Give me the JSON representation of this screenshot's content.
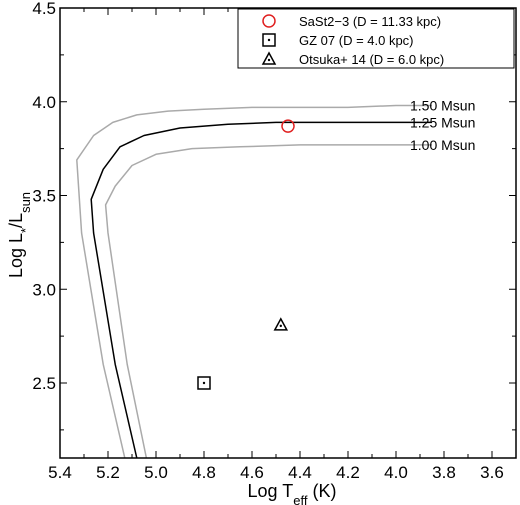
{
  "chart_data": {
    "type": "scatter",
    "x_axis": {
      "label_main": "Log T",
      "label_sub": "eff",
      "label_unit": " (K)",
      "range": [
        5.4,
        3.5
      ],
      "ticks": [
        "5.4",
        "5.2",
        "5.0",
        "4.8",
        "4.6",
        "4.4",
        "4.2",
        "4.0",
        "3.8",
        "3.6"
      ],
      "tick_values": [
        5.4,
        5.2,
        5.0,
        4.8,
        4.6,
        4.4,
        4.2,
        4.0,
        3.8,
        3.6
      ],
      "reversed": true
    },
    "y_axis": {
      "label_main": "Log L",
      "label_star": "*",
      "label_slash": "/L",
      "label_sub": "sun",
      "range": [
        2.1,
        4.5
      ],
      "ticks": [
        "2.5",
        "3.0",
        "3.5",
        "4.0",
        "4.5"
      ],
      "tick_values": [
        2.5,
        3.0,
        3.5,
        4.0,
        4.5
      ]
    },
    "legend": {
      "position": "top-right",
      "entries": [
        {
          "marker": "circle",
          "color": "#e02020",
          "label": "SaSt2−3 (D = 11.33 kpc)"
        },
        {
          "marker": "square-dot",
          "color": "#000000",
          "label": "GZ 07 (D = 4.0 kpc)"
        },
        {
          "marker": "triangle",
          "color": "#000000",
          "label": "Otsuka+ 14 (D = 6.0 kpc)"
        }
      ]
    },
    "points": [
      {
        "marker": "circle",
        "color": "#e02020",
        "x": 4.45,
        "y": 3.87
      },
      {
        "marker": "square-dot",
        "color": "#000000",
        "x": 4.8,
        "y": 2.5
      },
      {
        "marker": "triangle",
        "color": "#000000",
        "x": 4.48,
        "y": 2.81
      }
    ],
    "tracks": [
      {
        "name": "1.50 Msun",
        "color": "#aaaaaa",
        "x": [
          5.13,
          5.22,
          5.31,
          5.33,
          5.26,
          5.18,
          5.08,
          4.95,
          4.8,
          4.6,
          4.4,
          4.2,
          4.0,
          3.85
        ],
        "y": [
          2.1,
          2.6,
          3.3,
          3.69,
          3.82,
          3.89,
          3.93,
          3.95,
          3.96,
          3.97,
          3.97,
          3.97,
          3.98,
          3.98
        ]
      },
      {
        "name": "1.25 Msun",
        "color": "#000000",
        "x": [
          5.08,
          5.17,
          5.26,
          5.27,
          5.22,
          5.15,
          5.05,
          4.9,
          4.7,
          4.5,
          4.3,
          4.1,
          3.95,
          3.85
        ],
        "y": [
          2.1,
          2.6,
          3.3,
          3.48,
          3.64,
          3.76,
          3.82,
          3.86,
          3.88,
          3.89,
          3.89,
          3.89,
          3.89,
          3.89
        ]
      },
      {
        "name": "1.00 Msun",
        "color": "#aaaaaa",
        "x": [
          5.04,
          5.12,
          5.2,
          5.21,
          5.17,
          5.1,
          5.0,
          4.85,
          4.65,
          4.4,
          4.2,
          4.0,
          3.85
        ],
        "y": [
          2.1,
          2.6,
          3.3,
          3.45,
          3.55,
          3.66,
          3.72,
          3.75,
          3.76,
          3.77,
          3.77,
          3.77,
          3.77
        ]
      }
    ],
    "grid": false
  }
}
